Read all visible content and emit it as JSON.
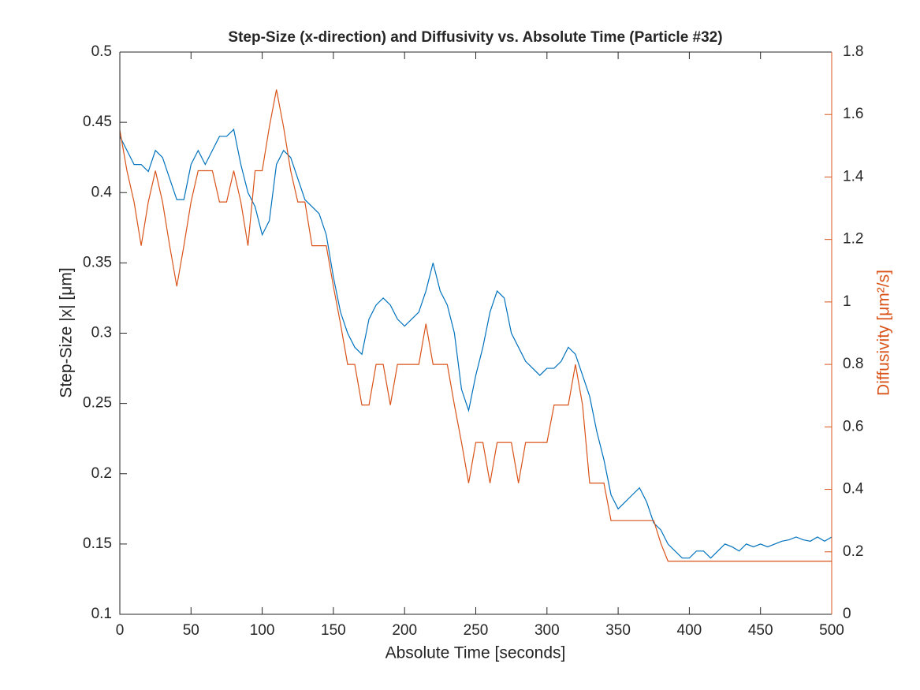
{
  "chart_data": {
    "type": "line",
    "title": "Step-Size (x-direction) and Diffusivity vs. Absolute Time (Particle #32)",
    "x_label": "Absolute Time [seconds]",
    "y_label": "Step-Size |x| [μm]",
    "y2_label": "Diffusivity [μm²/s]",
    "x": [
      0,
      5,
      10,
      15,
      20,
      25,
      30,
      35,
      40,
      45,
      50,
      55,
      60,
      65,
      70,
      75,
      80,
      85,
      90,
      95,
      100,
      105,
      110,
      115,
      120,
      125,
      130,
      135,
      140,
      145,
      150,
      155,
      160,
      165,
      170,
      175,
      180,
      185,
      190,
      195,
      200,
      205,
      210,
      215,
      220,
      225,
      230,
      235,
      240,
      245,
      250,
      255,
      260,
      265,
      270,
      275,
      280,
      285,
      290,
      295,
      300,
      305,
      310,
      315,
      320,
      325,
      330,
      335,
      340,
      345,
      350,
      355,
      360,
      365,
      370,
      375,
      380,
      385,
      390,
      395,
      400,
      405,
      410,
      415,
      420,
      425,
      430,
      435,
      440,
      445,
      450,
      455,
      460,
      465,
      470,
      475,
      480,
      485,
      490,
      495,
      500
    ],
    "series": [
      {
        "color": "#0072BD",
        "axis": "y",
        "values": [
          0.44,
          0.43,
          0.42,
          0.42,
          0.415,
          0.43,
          0.425,
          0.41,
          0.395,
          0.395,
          0.42,
          0.43,
          0.42,
          0.43,
          0.44,
          0.44,
          0.445,
          0.42,
          0.4,
          0.39,
          0.37,
          0.38,
          0.42,
          0.43,
          0.425,
          0.41,
          0.395,
          0.39,
          0.385,
          0.37,
          0.34,
          0.315,
          0.3,
          0.29,
          0.285,
          0.31,
          0.32,
          0.325,
          0.32,
          0.31,
          0.305,
          0.31,
          0.315,
          0.33,
          0.35,
          0.33,
          0.32,
          0.3,
          0.26,
          0.245,
          0.27,
          0.29,
          0.315,
          0.33,
          0.325,
          0.3,
          0.29,
          0.28,
          0.275,
          0.27,
          0.275,
          0.275,
          0.28,
          0.29,
          0.285,
          0.27,
          0.255,
          0.23,
          0.21,
          0.185,
          0.175,
          0.18,
          0.185,
          0.19,
          0.18,
          0.165,
          0.16,
          0.15,
          0.145,
          0.14,
          0.14,
          0.145,
          0.145,
          0.14,
          0.145,
          0.15,
          0.148,
          0.145,
          0.15,
          0.148,
          0.15,
          0.148,
          0.15,
          0.152,
          0.153,
          0.155,
          0.153,
          0.152,
          0.155,
          0.152,
          0.155
        ]
      },
      {
        "color": "#D95319",
        "axis": "y2",
        "values": [
          1.55,
          1.42,
          1.32,
          1.18,
          1.32,
          1.42,
          1.32,
          1.18,
          1.05,
          1.18,
          1.32,
          1.42,
          1.42,
          1.42,
          1.32,
          1.32,
          1.42,
          1.32,
          1.18,
          1.42,
          1.42,
          1.56,
          1.68,
          1.56,
          1.42,
          1.32,
          1.32,
          1.18,
          1.18,
          1.18,
          1.05,
          0.93,
          0.8,
          0.8,
          0.67,
          0.67,
          0.8,
          0.8,
          0.67,
          0.8,
          0.8,
          0.8,
          0.8,
          0.93,
          0.8,
          0.8,
          0.8,
          0.67,
          0.55,
          0.42,
          0.55,
          0.55,
          0.42,
          0.55,
          0.55,
          0.55,
          0.42,
          0.55,
          0.55,
          0.55,
          0.55,
          0.67,
          0.67,
          0.67,
          0.8,
          0.67,
          0.42,
          0.42,
          0.42,
          0.3,
          0.3,
          0.3,
          0.3,
          0.3,
          0.3,
          0.3,
          0.227,
          0.17,
          0.17,
          0.17,
          0.17,
          0.17,
          0.17,
          0.17,
          0.17,
          0.17,
          0.17,
          0.17,
          0.17,
          0.17,
          0.17,
          0.17,
          0.17,
          0.17,
          0.17,
          0.17,
          0.17,
          0.17,
          0.17,
          0.17,
          0.17
        ]
      }
    ],
    "xlim": [
      0,
      500
    ],
    "xticks": [
      0,
      50,
      100,
      150,
      200,
      250,
      300,
      350,
      400,
      450,
      500
    ],
    "ylim": [
      0.1,
      0.5
    ],
    "yticks": [
      0.1,
      0.15,
      0.2,
      0.25,
      0.3,
      0.35,
      0.4,
      0.45,
      0.5
    ],
    "y2lim": [
      0,
      1.8
    ],
    "y2ticks": [
      0,
      0.2,
      0.4,
      0.6,
      0.8,
      1,
      1.2,
      1.4,
      1.6,
      1.8
    ],
    "grid": false
  }
}
